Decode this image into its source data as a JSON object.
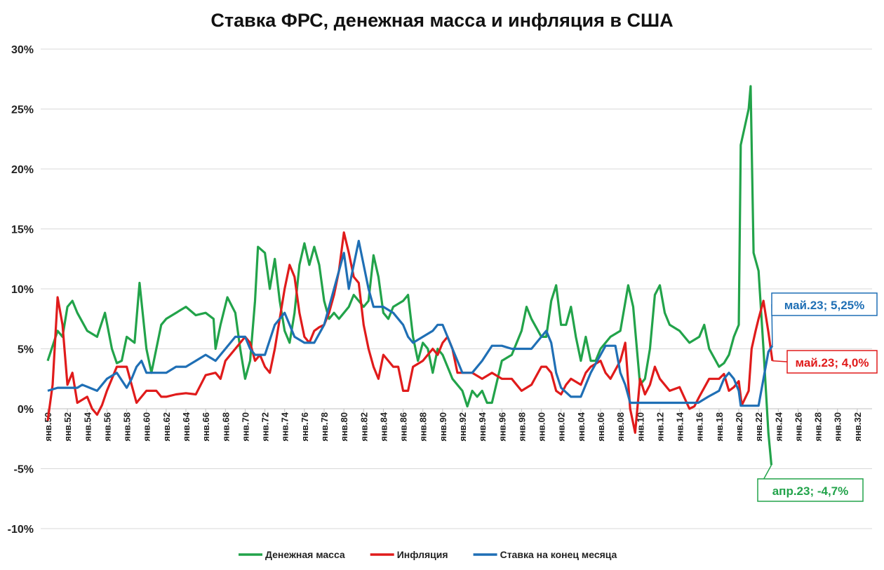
{
  "chart_data": {
    "type": "line",
    "title": "Ставка ФРС, денежная масса и инфляция в США",
    "xlim": [
      1950,
      2033.5
    ],
    "ylim": [
      -10,
      30
    ],
    "yticks": [
      {
        "value": -10,
        "label": "-10%"
      },
      {
        "value": -5,
        "label": "-5%"
      },
      {
        "value": 0,
        "label": "0%"
      },
      {
        "value": 5,
        "label": "5%"
      },
      {
        "value": 10,
        "label": "10%"
      },
      {
        "value": 15,
        "label": "15%"
      },
      {
        "value": 20,
        "label": "20%"
      },
      {
        "value": 25,
        "label": "25%"
      },
      {
        "value": 30,
        "label": "30%"
      }
    ],
    "xticks": [
      {
        "value": 1950,
        "label": "янв.50"
      },
      {
        "value": 1952,
        "label": "янв.52"
      },
      {
        "value": 1954,
        "label": "янв.54"
      },
      {
        "value": 1956,
        "label": "янв.56"
      },
      {
        "value": 1958,
        "label": "янв.58"
      },
      {
        "value": 1960,
        "label": "янв.60"
      },
      {
        "value": 1962,
        "label": "янв.62"
      },
      {
        "value": 1964,
        "label": "янв.64"
      },
      {
        "value": 1966,
        "label": "янв.66"
      },
      {
        "value": 1968,
        "label": "янв.68"
      },
      {
        "value": 1970,
        "label": "янв.70"
      },
      {
        "value": 1972,
        "label": "янв.72"
      },
      {
        "value": 1974,
        "label": "янв.74"
      },
      {
        "value": 1976,
        "label": "янв.76"
      },
      {
        "value": 1978,
        "label": "янв.78"
      },
      {
        "value": 1980,
        "label": "янв.80"
      },
      {
        "value": 1982,
        "label": "янв.82"
      },
      {
        "value": 1984,
        "label": "янв.84"
      },
      {
        "value": 1986,
        "label": "янв.86"
      },
      {
        "value": 1988,
        "label": "янв.88"
      },
      {
        "value": 1990,
        "label": "янв.90"
      },
      {
        "value": 1992,
        "label": "янв.92"
      },
      {
        "value": 1994,
        "label": "янв.94"
      },
      {
        "value": 1996,
        "label": "янв.96"
      },
      {
        "value": 1998,
        "label": "янв.98"
      },
      {
        "value": 2000,
        "label": "янв.00"
      },
      {
        "value": 2002,
        "label": "янв.02"
      },
      {
        "value": 2004,
        "label": "янв.04"
      },
      {
        "value": 2006,
        "label": "янв.06"
      },
      {
        "value": 2008,
        "label": "янв.08"
      },
      {
        "value": 2010,
        "label": "янв.10"
      },
      {
        "value": 2012,
        "label": "янв.12"
      },
      {
        "value": 2014,
        "label": "янв.14"
      },
      {
        "value": 2016,
        "label": "янв.16"
      },
      {
        "value": 2018,
        "label": "янв.18"
      },
      {
        "value": 2020,
        "label": "янв.20"
      },
      {
        "value": 2022,
        "label": "янв.22"
      },
      {
        "value": 2024,
        "label": "янв.24"
      },
      {
        "value": 2026,
        "label": "янв.26"
      },
      {
        "value": 2028,
        "label": "янв.28"
      },
      {
        "value": 2030,
        "label": "янв.30"
      },
      {
        "value": 2032,
        "label": "янв.32"
      }
    ],
    "grid": true,
    "series": [
      {
        "name": "Денежная масса",
        "color": "#22a34a",
        "x": [
          1950,
          1951,
          1951.5,
          1952,
          1952.5,
          1953,
          1954,
          1955,
          1955.8,
          1956.5,
          1957,
          1957.5,
          1958,
          1958.8,
          1959.3,
          1960,
          1960.5,
          1961,
          1961.5,
          1962,
          1963,
          1964,
          1965,
          1966,
          1966.8,
          1967,
          1967.5,
          1968.2,
          1969,
          1969.5,
          1970,
          1970.5,
          1971,
          1971.3,
          1972,
          1972.5,
          1973,
          1973.5,
          1974,
          1974.5,
          1975,
          1975.5,
          1976,
          1976.5,
          1977,
          1977.5,
          1978,
          1978.5,
          1979,
          1979.5,
          1980,
          1980.5,
          1981,
          1981.5,
          1982,
          1982.5,
          1983,
          1983.5,
          1984,
          1984.5,
          1985,
          1986,
          1986.5,
          1987,
          1987.5,
          1988,
          1988.5,
          1989,
          1989.5,
          1990,
          1990.5,
          1991,
          1992,
          1992.5,
          1993,
          1993.5,
          1994,
          1994.5,
          1995,
          1996,
          1997,
          1998,
          1998.5,
          1999,
          2000,
          2000.5,
          2001,
          2001.5,
          2002,
          2002.5,
          2003,
          2003.5,
          2004,
          2004.5,
          2005,
          2005.5,
          2006,
          2007,
          2008,
          2008.8,
          2009.3,
          2010,
          2010.5,
          2011,
          2011.5,
          2012,
          2012.5,
          2013,
          2014,
          2014.5,
          2015,
          2016,
          2016.5,
          2017,
          2018,
          2018.5,
          2019,
          2019.5,
          2020,
          2020.2,
          2021,
          2021.2,
          2021.5,
          2022,
          2022.5,
          2023,
          2023.3
        ],
        "values": [
          4,
          6.5,
          6,
          8.5,
          9,
          8,
          6.5,
          6,
          8,
          5,
          3.8,
          4,
          6,
          5.5,
          10.5,
          5,
          3,
          5,
          7,
          7.5,
          8,
          8.5,
          7.8,
          8,
          7.5,
          5,
          7,
          9.3,
          8,
          5,
          2.5,
          4,
          9,
          13.5,
          13,
          10,
          12.5,
          9,
          6.5,
          5.5,
          8,
          12,
          13.8,
          12,
          13.5,
          12,
          9,
          7.5,
          8,
          7.5,
          8,
          8.5,
          9.5,
          9,
          8.5,
          9,
          12.8,
          11,
          8,
          7.5,
          8.5,
          9,
          9.5,
          6,
          4,
          5.5,
          5,
          3,
          5,
          4.5,
          3.5,
          2.5,
          1.5,
          0.2,
          1.5,
          1,
          1.5,
          0.5,
          0.5,
          4,
          4.5,
          6.5,
          8.5,
          7.5,
          6,
          6,
          9,
          10.3,
          7,
          7,
          8.5,
          6,
          4,
          6,
          4,
          4,
          5,
          6,
          6.5,
          10.3,
          8.5,
          2,
          2.5,
          5,
          9.5,
          10.3,
          8,
          7,
          6.5,
          6,
          5.5,
          6,
          7,
          5,
          3.5,
          3.8,
          4.5,
          6,
          7,
          22,
          25,
          26.9,
          13,
          11.5,
          5,
          -2,
          -4.7
        ]
      },
      {
        "name": "Инфляция",
        "color": "#e01b1b",
        "x": [
          1950,
          1950.5,
          1951,
          1951.5,
          1952,
          1952.5,
          1953,
          1954,
          1954.5,
          1955,
          1955.5,
          1956,
          1956.5,
          1957,
          1958,
          1958.5,
          1959,
          1959.5,
          1960,
          1961,
          1961.5,
          1962,
          1963,
          1964,
          1965,
          1965.5,
          1966,
          1967,
          1967.5,
          1968,
          1969,
          1970,
          1970.5,
          1971,
          1971.5,
          1972,
          1972.5,
          1973,
          1973.5,
          1974,
          1974.5,
          1975,
          1975.5,
          1976,
          1976.5,
          1977,
          1977.5,
          1978,
          1978.5,
          1979,
          1979.5,
          1980,
          1980.5,
          1981,
          1981.5,
          1982,
          1982.5,
          1983,
          1983.5,
          1984,
          1984.5,
          1985,
          1985.5,
          1986,
          1986.5,
          1987,
          1988,
          1989,
          1989.5,
          1990,
          1990.5,
          1991,
          1991.5,
          1992,
          1993,
          1994,
          1995,
          1996,
          1997,
          1998,
          1999,
          2000,
          2000.5,
          2001,
          2001.5,
          2002,
          2002.5,
          2003,
          2004,
          2004.5,
          2005,
          2006,
          2006.5,
          2007,
          2008,
          2008.5,
          2009,
          2009.5,
          2010,
          2010.5,
          2011,
          2011.5,
          2012,
          2013,
          2014,
          2015,
          2015.5,
          2016,
          2017,
          2018,
          2018.5,
          2019,
          2019.5,
          2020,
          2020.3,
          2021,
          2021.3,
          2021.7,
          2022,
          2022.5,
          2023,
          2023.4
        ],
        "values": [
          -1,
          2,
          9.3,
          7,
          2,
          3,
          0.5,
          1,
          0,
          -0.5,
          0.3,
          1.5,
          2.5,
          3.5,
          3.5,
          2,
          0.5,
          1,
          1.5,
          1.5,
          1,
          1,
          1.2,
          1.3,
          1.2,
          2,
          2.8,
          3,
          2.5,
          4,
          5,
          6,
          5.5,
          4,
          4.5,
          3.5,
          3,
          5,
          7.5,
          10,
          12,
          11,
          8,
          6,
          5.5,
          6.5,
          6.8,
          7,
          8,
          9.5,
          11.5,
          14.7,
          13,
          11,
          10.5,
          7,
          5,
          3.5,
          2.5,
          4.5,
          4,
          3.5,
          3.5,
          1.5,
          1.5,
          3.5,
          4,
          5,
          4.5,
          5.5,
          6,
          5,
          3,
          3,
          3,
          2.5,
          3,
          2.5,
          2.5,
          1.5,
          2,
          3.5,
          3.5,
          3,
          1.5,
          1.2,
          2,
          2.5,
          2,
          3,
          3.5,
          4,
          3,
          2.5,
          4,
          5.5,
          0,
          -2,
          2.5,
          1.2,
          2,
          3.5,
          2.5,
          1.5,
          1.8,
          0,
          0.2,
          1,
          2.5,
          2.5,
          2.9,
          1.5,
          1.8,
          2.3,
          0.3,
          1.5,
          5,
          6.5,
          7.5,
          9,
          6.4,
          4
        ]
      },
      {
        "name": "Ставка на конец месяца",
        "color": "#1f6fb5",
        "x": [
          1950,
          1951,
          1953,
          1953.5,
          1955,
          1956,
          1957,
          1958,
          1958.5,
          1959,
          1959.5,
          1960,
          1962,
          1963,
          1964,
          1965,
          1966,
          1967,
          1968,
          1969,
          1970,
          1970.5,
          1971,
          1972,
          1973,
          1974,
          1974.5,
          1975,
          1976,
          1977,
          1978,
          1979,
          1980,
          1980.5,
          1981,
          1981.5,
          1982,
          1982.5,
          1983,
          1984,
          1985,
          1986,
          1986.5,
          1987,
          1988,
          1989,
          1989.5,
          1990,
          1990.5,
          1991,
          1991.5,
          1992,
          1993,
          1994,
          1995,
          1996,
          1997,
          1998,
          1999,
          2000,
          2000.5,
          2001,
          2001.5,
          2002,
          2003,
          2004,
          2004.5,
          2005,
          2006,
          2006.5,
          2007.5,
          2008,
          2008.5,
          2009,
          2015.9,
          2016.9,
          2018,
          2018.5,
          2019,
          2019.5,
          2020,
          2020.2,
          2022,
          2022.5,
          2023,
          2023.4
        ],
        "values": [
          1.5,
          1.75,
          1.75,
          2,
          1.5,
          2.5,
          3,
          1.75,
          2.5,
          3.5,
          4,
          3,
          3,
          3.5,
          3.5,
          4,
          4.5,
          4,
          5,
          6,
          6,
          5,
          4.5,
          4.5,
          7,
          8,
          7,
          6,
          5.5,
          5.5,
          7,
          10,
          13,
          10,
          12,
          14,
          12,
          10,
          8.5,
          8.5,
          8,
          7,
          6,
          5.5,
          6,
          6.5,
          7,
          7,
          6,
          5,
          4,
          3,
          3,
          4,
          5.25,
          5.25,
          5,
          5,
          5,
          6,
          6.5,
          5.5,
          3,
          1.75,
          1,
          1,
          2,
          3,
          4.5,
          5.25,
          5.25,
          3,
          2,
          0.5,
          0.5,
          1,
          1.5,
          2.5,
          3,
          2.5,
          1.5,
          0.25,
          0.25,
          2.5,
          4.75,
          5.25
        ]
      }
    ],
    "annotations": [
      "май.23; 5,25%",
      "май.23; 4,0%",
      "апр.23; -4,7%"
    ]
  }
}
